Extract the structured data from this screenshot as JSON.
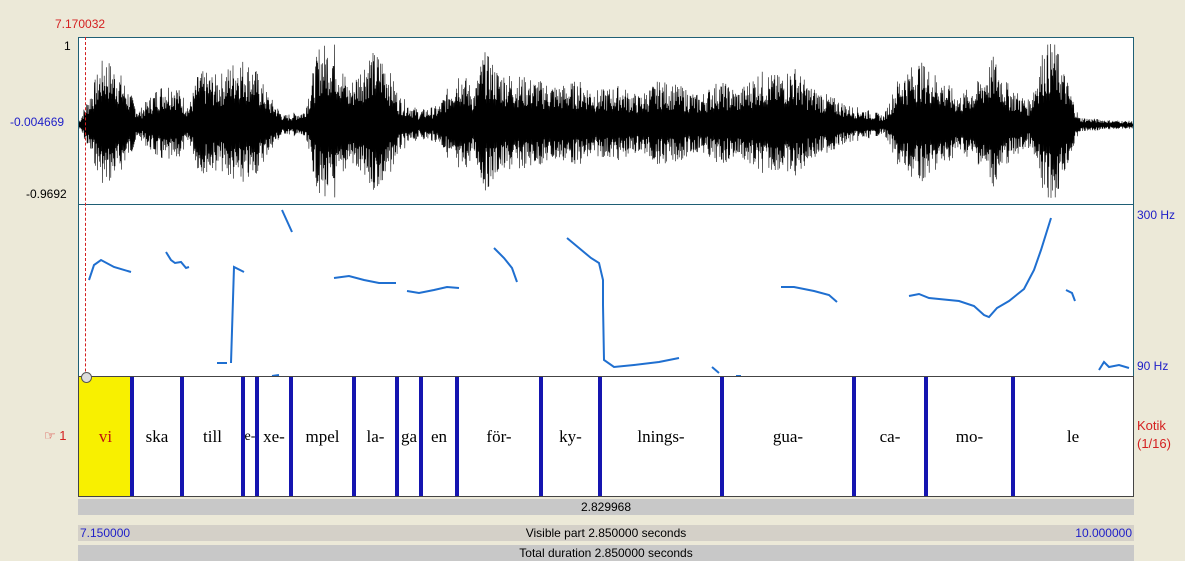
{
  "cursor": {
    "time": "7.170032"
  },
  "waveform": {
    "max_label": "1",
    "mid_label": "-0.004669",
    "min_label": "-0.9692"
  },
  "pitch": {
    "top_label": "300 Hz",
    "bottom_label": "90 Hz",
    "line_color": "#1f6fd0"
  },
  "tier": {
    "number": "1",
    "name": "Kotik",
    "index": "(1/16)",
    "selected_color": "#f8f000",
    "boundary_color": "#1515b0",
    "intervals": [
      "vi",
      "ska",
      "till",
      "e-",
      "xe-",
      "mpel",
      "la-",
      "ga",
      "en",
      "för-",
      "ky-",
      "lnings-",
      "gua-",
      "ca-",
      "mo-",
      "le"
    ]
  },
  "selection": {
    "duration": "2.829968"
  },
  "visible": {
    "start": "7.150000",
    "label": "Visible part 2.850000 seconds",
    "end": "10.000000"
  },
  "total": {
    "label": "Total duration 2.850000 seconds"
  },
  "icons": {
    "pointer": "pointing-hand-icon"
  }
}
